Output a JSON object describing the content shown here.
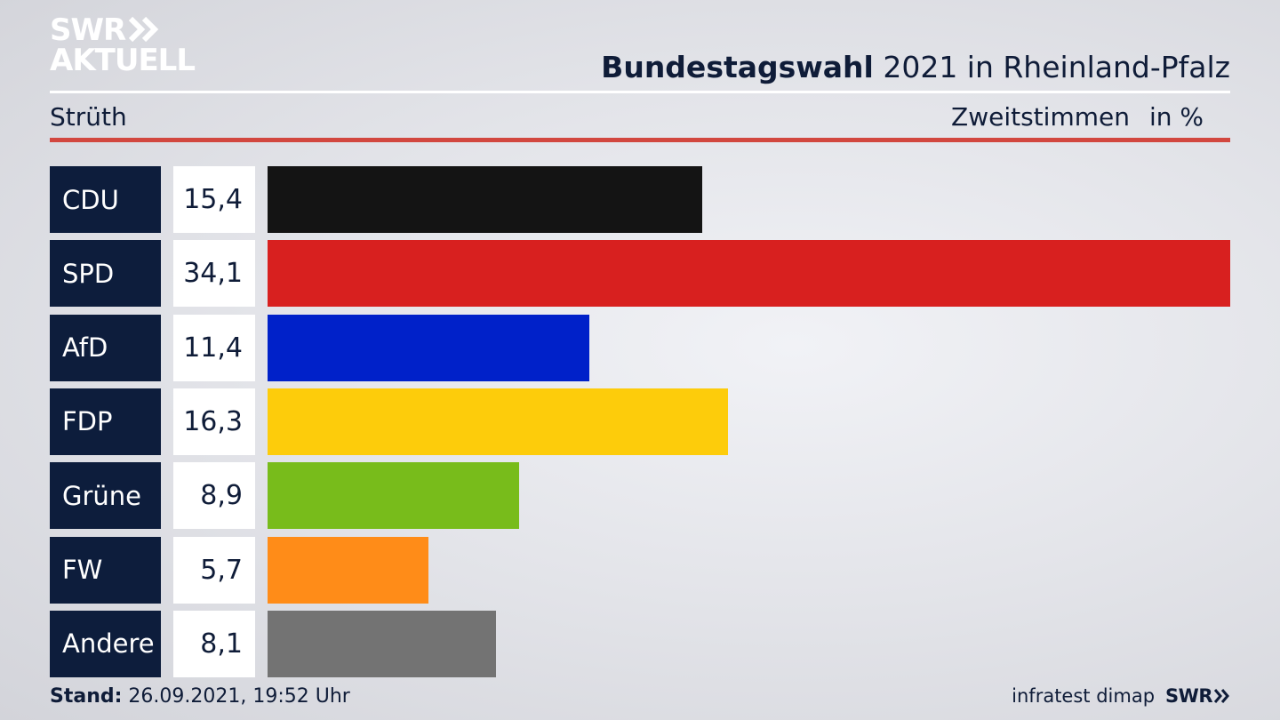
{
  "brand": {
    "logo_line1": "SWR",
    "logo_line2": "AKTUELL",
    "chevron_icon": "double-chevron-right-icon"
  },
  "header": {
    "title_bold": "Bundestagswahl",
    "title_rest": "2021 in Rheinland-Pfalz"
  },
  "subheader": {
    "location": "Strüth",
    "measure": "Zweitstimmen",
    "unit": "in %"
  },
  "colors": {
    "navy": "#0d1d3c",
    "rule_red": "#d2473f"
  },
  "chart_data": {
    "type": "bar",
    "orientation": "horizontal",
    "categories": [
      "CDU",
      "SPD",
      "AfD",
      "FDP",
      "Grüne",
      "FW",
      "Andere"
    ],
    "values": [
      15.4,
      34.1,
      11.4,
      16.3,
      8.9,
      5.7,
      8.1
    ],
    "value_labels": [
      "15,4",
      "34,1",
      "11,4",
      "16,3",
      "8,9",
      "5,7",
      "8,1"
    ],
    "colors": [
      "#141414",
      "#d8201f",
      "#0021c9",
      "#fdcc0b",
      "#78bc1b",
      "#ff8c18",
      "#737373"
    ],
    "xlim": [
      0,
      34.1
    ]
  },
  "footer": {
    "stand_label": "Stand:",
    "stand_value": "26.09.2021, 19:52 Uhr",
    "source": "infratest dimap",
    "source_brand": "SWR"
  }
}
